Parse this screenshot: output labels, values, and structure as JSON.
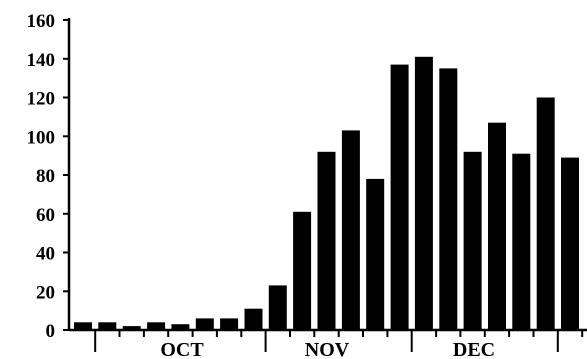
{
  "chart_data": {
    "type": "bar",
    "title": "",
    "xlabel": "",
    "ylabel": "",
    "ylim": [
      0,
      160
    ],
    "yticks": [
      "0",
      "20",
      "40",
      "60",
      "80",
      "100",
      "120",
      "140",
      "160"
    ],
    "months": [
      "OCT",
      "NOV",
      "DEC"
    ],
    "values": [
      4,
      4,
      2,
      4,
      3,
      6,
      6,
      11,
      23,
      61,
      92,
      103,
      78,
      137,
      141,
      135,
      92,
      107,
      91,
      120,
      89
    ],
    "grid": false,
    "legend": "none",
    "bar_color": "#000000"
  }
}
